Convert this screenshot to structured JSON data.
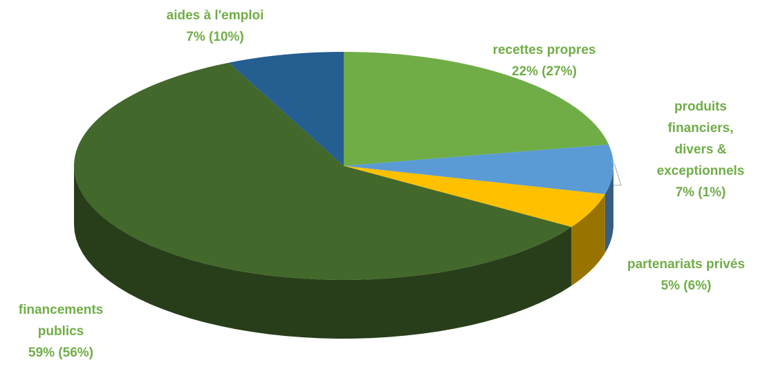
{
  "chart_data": {
    "type": "pie",
    "categories": [
      [
        "recettes propres"
      ],
      [
        "produits",
        "financiers,",
        "divers &",
        "exceptionnels"
      ],
      [
        "partenariats privés"
      ],
      [
        "financements",
        "publics"
      ],
      [
        "aides à l'emploi"
      ]
    ],
    "values": [
      22,
      7,
      5,
      59,
      7
    ],
    "value_labels": [
      "22% (27%)",
      "7% (1%)",
      "5% (6%)",
      "59% (56%)",
      "7% (10%)"
    ],
    "colors": [
      "#70ad47",
      "#5b9bd5",
      "#ffc000",
      "#43682b",
      "#255e91"
    ]
  }
}
